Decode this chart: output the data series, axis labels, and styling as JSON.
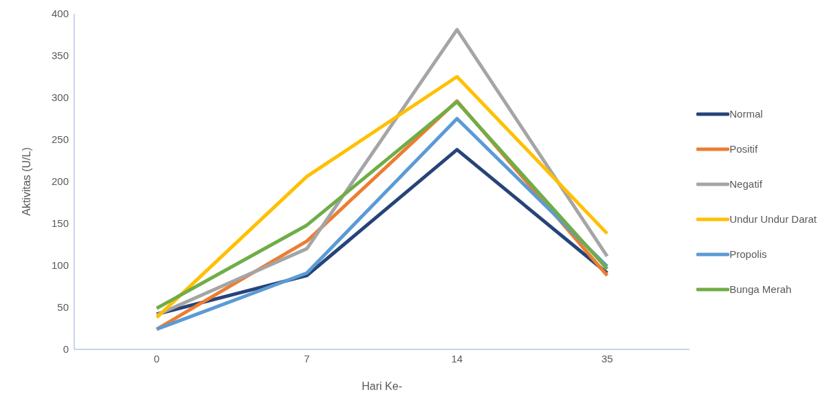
{
  "chart_data": {
    "type": "line",
    "xlabel": "Hari Ke-",
    "ylabel": "Aktivitas (U/L)",
    "categories": [
      "0",
      "7",
      "14",
      "35"
    ],
    "ylim": [
      0,
      400
    ],
    "yticks": [
      0,
      50,
      100,
      150,
      200,
      250,
      300,
      350,
      400
    ],
    "grid": false,
    "legend": "right",
    "marker": "none",
    "line_style": "solid",
    "series": [
      {
        "name": "Normal",
        "color": "#264478",
        "values": [
          42,
          88,
          238,
          91
        ]
      },
      {
        "name": "Positif",
        "color": "#ed7d31",
        "values": [
          24,
          129,
          296,
          88
        ]
      },
      {
        "name": "Negatif",
        "color": "#a5a5a5",
        "values": [
          41,
          120,
          381,
          111
        ]
      },
      {
        "name": "Undur Undur Darat",
        "color": "#ffc000",
        "values": [
          38,
          206,
          325,
          138
        ]
      },
      {
        "name": "Propolis",
        "color": "#5b9bd5",
        "values": [
          24,
          91,
          275,
          99
        ]
      },
      {
        "name": "Bunga Merah",
        "color": "#70ad47",
        "values": [
          49,
          148,
          295,
          96
        ]
      }
    ]
  }
}
